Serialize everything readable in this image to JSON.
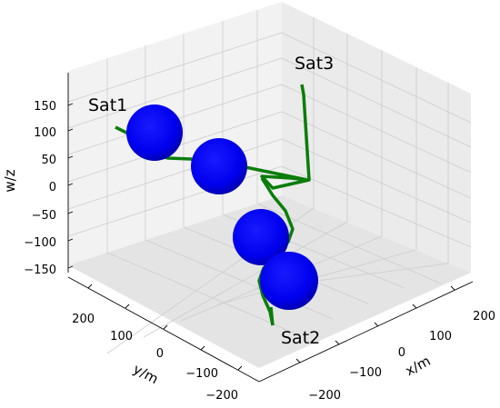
{
  "chart_data": {
    "type": "line3d",
    "title": "",
    "xlabel": "x/m",
    "ylabel": "y/m",
    "zlabel": "w/z",
    "xlim": [
      -250,
      250
    ],
    "ylim": [
      -250,
      250
    ],
    "zlim": [
      -180,
      180
    ],
    "grid": true,
    "x_ticks": [
      "200",
      "100",
      "0",
      "−100",
      "−200"
    ],
    "y_ticks": [
      "200",
      "100",
      "0",
      "−100",
      "−200"
    ],
    "z_ticks": [
      "150",
      "100",
      "50",
      "0",
      "−50",
      "−100",
      "−150"
    ],
    "annotations": [
      "Sat1",
      "Sat2",
      "Sat3"
    ],
    "colors": {
      "trajectory": "#0a7d0a",
      "sphere_fill": "#0000ff",
      "sphere_edge": "#0000aa",
      "pane_light": "#f2f2f2",
      "pane_dark": "#e6e6e6",
      "grid": "#cccccc"
    }
  }
}
